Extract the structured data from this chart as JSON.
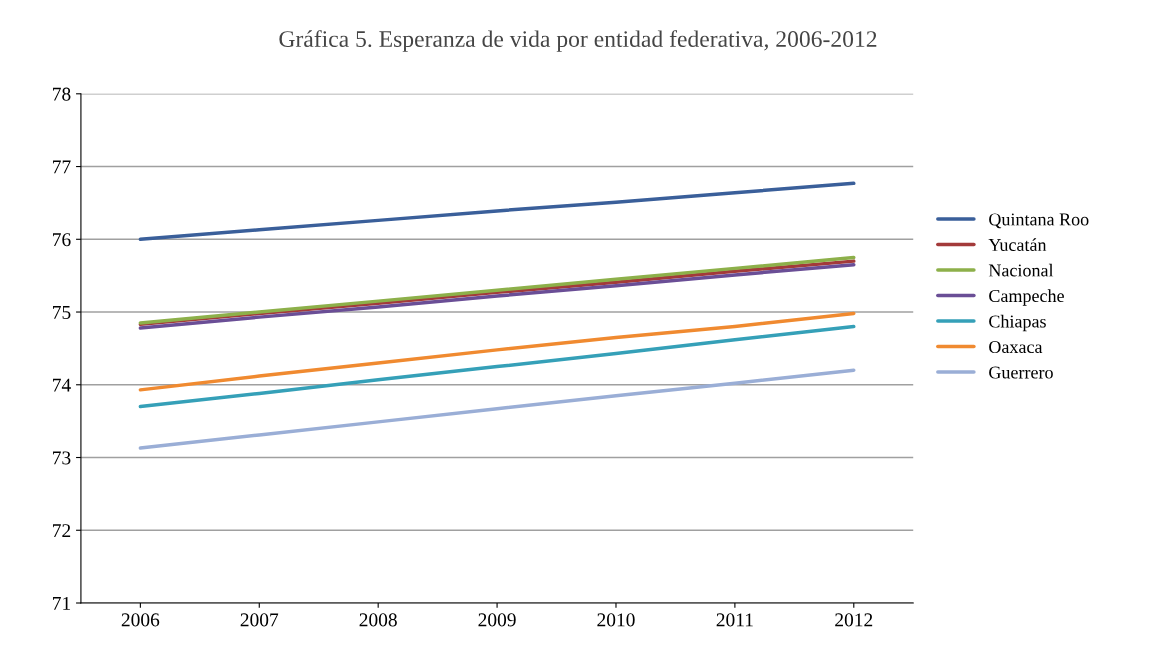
{
  "chart_data": {
    "type": "line",
    "title": "Gráfica 5. Esperanza de vida por entidad federativa, 2006-2012",
    "categories": [
      "2006",
      "2007",
      "2008",
      "2009",
      "2010",
      "2011",
      "2012"
    ],
    "series": [
      {
        "name": "Quintana Roo",
        "color": "#3a5f9a",
        "values": [
          76.0,
          76.13,
          76.26,
          76.39,
          76.51,
          76.64,
          76.77
        ]
      },
      {
        "name": "Yucatán",
        "color": "#a33a3a",
        "values": [
          74.83,
          74.98,
          75.12,
          75.27,
          75.41,
          75.56,
          75.7
        ]
      },
      {
        "name": "Nacional",
        "color": "#8db04a",
        "values": [
          74.85,
          75.0,
          75.15,
          75.3,
          75.45,
          75.6,
          75.75
        ]
      },
      {
        "name": "Campeche",
        "color": "#6a4e96",
        "values": [
          74.78,
          74.93,
          75.07,
          75.22,
          75.36,
          75.51,
          75.65
        ]
      },
      {
        "name": "Chiapas",
        "color": "#35a0b8",
        "values": [
          73.7,
          73.88,
          74.07,
          74.25,
          74.43,
          74.62,
          74.8
        ]
      },
      {
        "name": "Oaxaca",
        "color": "#f08a30",
        "values": [
          73.93,
          74.12,
          74.3,
          74.48,
          74.65,
          74.8,
          74.98
        ]
      },
      {
        "name": "Guerrero",
        "color": "#9aaed6",
        "values": [
          73.13,
          73.31,
          73.49,
          73.67,
          73.85,
          74.02,
          74.2
        ]
      }
    ],
    "ylim": [
      71,
      78
    ],
    "yticks": [
      71,
      72,
      73,
      74,
      75,
      76,
      77,
      78
    ],
    "grid": "y",
    "legend": "right",
    "marker": "none",
    "line_style": "solid"
  }
}
